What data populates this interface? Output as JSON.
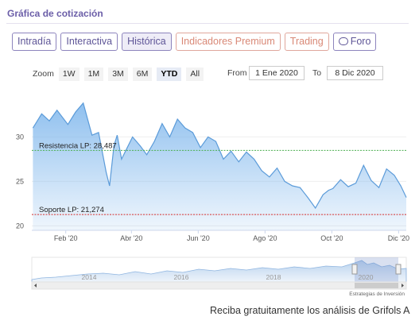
{
  "header": {
    "title": "Gráfica de cotización"
  },
  "tabs": [
    {
      "label": "Intradía",
      "active": false
    },
    {
      "label": "Interactiva",
      "active": false
    },
    {
      "label": "Histórica",
      "active": true
    },
    {
      "label": "Indicadores Premium",
      "active": false
    },
    {
      "label": "Trading",
      "active": false
    },
    {
      "label": "Foro",
      "active": false,
      "icon": "chat-bubble-icon"
    }
  ],
  "zoom": {
    "label": "Zoom",
    "options": [
      "1W",
      "1M",
      "3M",
      "6M",
      "YTD",
      "All"
    ],
    "selected": "YTD"
  },
  "range": {
    "from_label": "From",
    "from_value": "1 Ene 2020",
    "to_label": "To",
    "to_value": "8 Dic 2020"
  },
  "chart_data": {
    "type": "area",
    "x_tick_labels": [
      "Feb '20",
      "Abr '20",
      "Jun '20",
      "Ago '20",
      "Oct '20",
      "Dic '20"
    ],
    "y_tick_labels": [
      "20",
      "25",
      "30"
    ],
    "ylim": [
      19.5,
      34.5
    ],
    "x": [
      "2020-01-02",
      "2020-01-10",
      "2020-01-17",
      "2020-01-24",
      "2020-02-03",
      "2020-02-10",
      "2020-02-17",
      "2020-02-21",
      "2020-02-25",
      "2020-03-02",
      "2020-03-09",
      "2020-03-12",
      "2020-03-16",
      "2020-03-19",
      "2020-03-23",
      "2020-03-27",
      "2020-04-02",
      "2020-04-09",
      "2020-04-15",
      "2020-04-22",
      "2020-04-29",
      "2020-05-06",
      "2020-05-13",
      "2020-05-20",
      "2020-05-27",
      "2020-06-03",
      "2020-06-10",
      "2020-06-17",
      "2020-06-24",
      "2020-07-01",
      "2020-07-08",
      "2020-07-15",
      "2020-07-22",
      "2020-07-29",
      "2020-08-05",
      "2020-08-12",
      "2020-08-19",
      "2020-08-26",
      "2020-09-02",
      "2020-09-09",
      "2020-09-16",
      "2020-09-23",
      "2020-09-28",
      "2020-10-02",
      "2020-10-09",
      "2020-10-16",
      "2020-10-23",
      "2020-10-30",
      "2020-11-06",
      "2020-11-13",
      "2020-11-20",
      "2020-11-27",
      "2020-12-03",
      "2020-12-08"
    ],
    "values": [
      31,
      32.6,
      31.8,
      33,
      31.4,
      32.8,
      33.8,
      32,
      30.2,
      30.5,
      26,
      24.5,
      29,
      30.2,
      27.5,
      28.5,
      30,
      29,
      28,
      29.5,
      31.5,
      30,
      32,
      31,
      30.5,
      28.8,
      30,
      29.5,
      27.5,
      28.4,
      27.2,
      28.3,
      27.5,
      26.2,
      25.5,
      26.5,
      25,
      24.5,
      24.3,
      23.2,
      22,
      23.5,
      24,
      24.2,
      25.2,
      24.4,
      24.8,
      26.8,
      25.1,
      24.3,
      26.4,
      25.7,
      24.5,
      23.2
    ],
    "series": [
      {
        "name": "Grifols A"
      }
    ],
    "reference_lines": [
      {
        "label": "Resistencia LP: 28,487",
        "value": 28.487,
        "color": "#4caf50"
      },
      {
        "label": "Soporte LP: 21,274",
        "value": 21.274,
        "color": "#d32f2f"
      }
    ],
    "navigator": {
      "year_labels": [
        "2014",
        "2016",
        "2018",
        "2020"
      ],
      "credit": "Estrategias de Inversión"
    }
  },
  "footer": {
    "text": "Reciba gratuitamente los análisis de Grifols A"
  }
}
